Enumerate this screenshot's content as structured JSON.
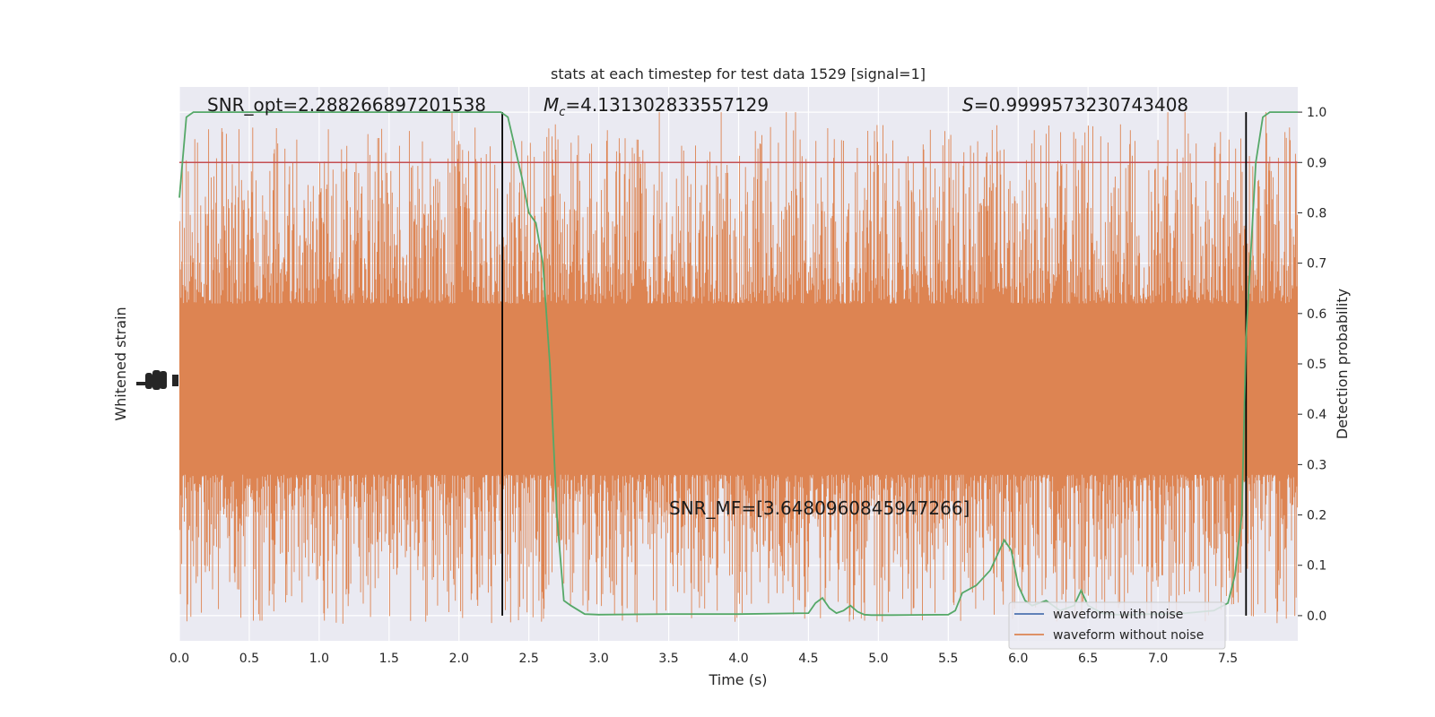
{
  "chart_data": {
    "type": "line",
    "title": "stats at each timestep for test data 1529 [signal=1]",
    "xlabel": "Time (s)",
    "ylabel_left": "Whitened strain",
    "ylabel_right": "Detection probability",
    "xlim": [
      0,
      8
    ],
    "ylim_right": [
      -0.05,
      1.05
    ],
    "x_ticks": [
      "0.0",
      "0.5",
      "1.0",
      "1.5",
      "2.0",
      "2.5",
      "3.0",
      "3.5",
      "4.0",
      "4.5",
      "5.0",
      "5.5",
      "6.0",
      "6.5",
      "7.0",
      "7.5"
    ],
    "y_ticks_right": [
      "0.0",
      "0.1",
      "0.2",
      "0.3",
      "0.4",
      "0.5",
      "0.6",
      "0.7",
      "0.8",
      "0.9",
      "1.0"
    ],
    "threshold": 0.9,
    "vlines": [
      2.31,
      7.63
    ],
    "annotations": {
      "snr_opt": "SNR_opt=2.288266897201538",
      "mc_symbol": "M",
      "mc_sub": "c",
      "mc_value": "=4.131302833557129",
      "s_symbol": "S",
      "s_value": "=0.9999573230743408",
      "snr_mf": "SNR_MF=[3.6480960845947266]"
    },
    "series": [
      {
        "name": "waveform with noise",
        "color": "#4c72b0"
      },
      {
        "name": "waveform without noise",
        "color": "#dd8452"
      }
    ],
    "prob_series": {
      "color": "#55a868",
      "x": [
        0.0,
        0.05,
        0.1,
        0.2,
        0.5,
        1.0,
        1.5,
        2.0,
        2.2,
        2.3,
        2.35,
        2.4,
        2.45,
        2.5,
        2.55,
        2.6,
        2.65,
        2.7,
        2.75,
        2.8,
        2.9,
        3.0,
        3.5,
        4.0,
        4.5,
        4.55,
        4.6,
        4.65,
        4.7,
        4.75,
        4.8,
        4.85,
        4.9,
        4.95,
        5.0,
        5.1,
        5.5,
        5.55,
        5.6,
        5.7,
        5.8,
        5.85,
        5.9,
        5.95,
        6.0,
        6.05,
        6.1,
        6.2,
        6.3,
        6.4,
        6.45,
        6.5,
        6.6,
        6.7,
        6.8,
        6.9,
        7.0,
        7.2,
        7.4,
        7.5,
        7.55,
        7.6,
        7.63,
        7.66,
        7.7,
        7.75,
        7.8,
        7.85,
        8.0
      ],
      "y": [
        0.83,
        0.99,
        1.0,
        1.0,
        1.0,
        1.0,
        1.0,
        1.0,
        1.0,
        1.0,
        0.99,
        0.93,
        0.87,
        0.8,
        0.78,
        0.7,
        0.5,
        0.2,
        0.03,
        0.02,
        0.003,
        0.002,
        0.003,
        0.003,
        0.005,
        0.025,
        0.035,
        0.015,
        0.005,
        0.01,
        0.02,
        0.008,
        0.002,
        0.001,
        0.001,
        0.001,
        0.002,
        0.01,
        0.045,
        0.06,
        0.09,
        0.12,
        0.15,
        0.13,
        0.06,
        0.03,
        0.02,
        0.03,
        0.01,
        0.02,
        0.05,
        0.02,
        0.005,
        0.002,
        0.002,
        0.003,
        0.003,
        0.005,
        0.01,
        0.025,
        0.08,
        0.2,
        0.55,
        0.7,
        0.9,
        0.99,
        1.0,
        1.0,
        1.0
      ]
    },
    "grid": true,
    "legend_position": "lower-right"
  }
}
